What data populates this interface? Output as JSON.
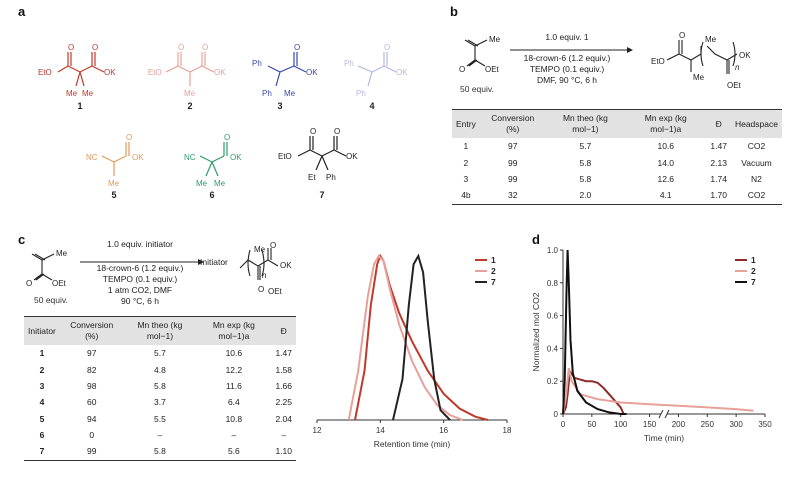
{
  "panels": {
    "a": "a",
    "b": "b",
    "c": "c",
    "d": "d"
  },
  "compounds": [
    {
      "num": "1",
      "color": "#c0392b"
    },
    {
      "num": "2",
      "color": "#e8a09a"
    },
    {
      "num": "3",
      "color": "#3949ab"
    },
    {
      "num": "4",
      "color": "#b3b8e0"
    },
    {
      "num": "5",
      "color": "#e29a5a"
    },
    {
      "num": "6",
      "color": "#2e9e6a"
    },
    {
      "num": "7",
      "color": "#222222"
    }
  ],
  "labels": {
    "EtO": "EtO",
    "OK": "OK",
    "Me": "Me",
    "Ph": "Ph",
    "NC": "NC",
    "Et": "Et",
    "OEt": "OEt",
    "n": "n",
    "Initiator": "Initiator"
  },
  "panel_b": {
    "monomer_equiv": "50 equiv.",
    "reagent_top": "1.0 equiv. 1",
    "conditions": [
      "18-crown-6 (1.2 equiv.)",
      "TEMPO (0.1 equiv.)",
      "DMF, 90 °C, 6 h"
    ],
    "table": {
      "headers": [
        "Entry",
        "Conversion (%)",
        "Mn theo (kg mol−1)",
        "Mn exp (kg mol−1)a",
        "Đ",
        "Headspace"
      ],
      "rows": [
        [
          "1",
          "97",
          "5.7",
          "10.6",
          "1.47",
          "CO2"
        ],
        [
          "2",
          "99",
          "5.8",
          "14.0",
          "2.13",
          "Vacuum"
        ],
        [
          "3",
          "99",
          "5.8",
          "12.6",
          "1.74",
          "N2"
        ],
        [
          "4b",
          "32",
          "2.0",
          "4.1",
          "1.70",
          "CO2"
        ]
      ]
    }
  },
  "panel_c": {
    "monomer_equiv": "50 equiv.",
    "reagent_top": "1.0 equiv. initiator",
    "conditions": [
      "18-crown-6 (1.2 equiv.)",
      "TEMPO (0.1 equiv.)",
      "1 atm CO2, DMF",
      "90 °C, 6 h"
    ],
    "table": {
      "headers": [
        "Initiator",
        "Conversion (%)",
        "Mn theo (kg mol−1)",
        "Mn exp (kg mol−1)a",
        "Đ"
      ],
      "rows": [
        [
          "1",
          "97",
          "5.7",
          "10.6",
          "1.47"
        ],
        [
          "2",
          "82",
          "4.8",
          "12.2",
          "1.58"
        ],
        [
          "3",
          "98",
          "5.8",
          "11.6",
          "1.66"
        ],
        [
          "4",
          "60",
          "3.7",
          "6.4",
          "2.25"
        ],
        [
          "5",
          "94",
          "5.5",
          "10.8",
          "2.04"
        ],
        [
          "6",
          "0",
          "–",
          "–",
          "–"
        ],
        [
          "7",
          "99",
          "5.8",
          "5.6",
          "1.10"
        ]
      ]
    }
  },
  "chart_data": [
    {
      "type": "line",
      "xlabel": "Retention time (min)",
      "ylabel": "",
      "xlim": [
        12,
        18
      ],
      "xticks": [
        "12",
        "14",
        "16",
        "18"
      ],
      "series": [
        {
          "name": "1",
          "color": "#c0392b",
          "x": [
            13.2,
            13.5,
            13.7,
            13.9,
            14.0,
            14.1,
            14.3,
            14.6,
            15.0,
            15.5,
            16.0,
            16.5,
            17.0,
            17.4
          ],
          "y": [
            0.0,
            0.3,
            0.7,
            0.95,
            1.0,
            0.97,
            0.82,
            0.65,
            0.48,
            0.3,
            0.16,
            0.07,
            0.02,
            0.0
          ]
        },
        {
          "name": "2",
          "color": "#e8a09a",
          "x": [
            13.0,
            13.3,
            13.6,
            13.8,
            13.95,
            14.1,
            14.3,
            14.6,
            15.0,
            15.4,
            15.8,
            16.2,
            16.6
          ],
          "y": [
            0.0,
            0.3,
            0.75,
            0.95,
            1.0,
            0.97,
            0.8,
            0.58,
            0.36,
            0.2,
            0.09,
            0.03,
            0.0
          ]
        },
        {
          "name": "7",
          "color": "#222222",
          "x": [
            14.4,
            14.7,
            14.9,
            15.05,
            15.2,
            15.35,
            15.5,
            15.7,
            15.9,
            16.2
          ],
          "y": [
            0.0,
            0.25,
            0.7,
            0.95,
            1.0,
            0.9,
            0.6,
            0.25,
            0.06,
            0.0
          ]
        }
      ]
    },
    {
      "type": "line",
      "xlabel": "Time (min)",
      "ylabel": "Normalized mol CO2",
      "ylim": [
        0,
        1.0
      ],
      "yticks": [
        "0",
        "0.2",
        "0.4",
        "0.6",
        "0.8",
        "1.0"
      ],
      "xticks": [
        "0",
        "50",
        "100",
        "150",
        "200",
        "250",
        "300",
        "350"
      ],
      "series": [
        {
          "name": "1",
          "color": "#8e2a2a",
          "x": [
            0,
            5,
            8,
            12,
            20,
            30,
            40,
            50,
            60,
            70,
            80,
            90,
            100,
            105
          ],
          "y": [
            0.0,
            0.04,
            0.12,
            0.26,
            0.22,
            0.21,
            0.2,
            0.2,
            0.19,
            0.16,
            0.12,
            0.08,
            0.04,
            0.0
          ]
        },
        {
          "name": "2",
          "color": "#e8a09a",
          "x": [
            0,
            5,
            10,
            15,
            30,
            60,
            100,
            150,
            200,
            250,
            300,
            330
          ],
          "y": [
            0.0,
            0.1,
            0.28,
            0.2,
            0.12,
            0.09,
            0.07,
            0.06,
            0.05,
            0.04,
            0.03,
            0.02
          ]
        },
        {
          "name": "7",
          "color": "#111111",
          "x": [
            0,
            3,
            6,
            8,
            10,
            13,
            17,
            25,
            40,
            60,
            80,
            100,
            110
          ],
          "y": [
            0.0,
            0.2,
            0.75,
            1.0,
            0.8,
            0.45,
            0.25,
            0.14,
            0.07,
            0.03,
            0.01,
            0.0,
            0.0
          ]
        }
      ]
    }
  ]
}
